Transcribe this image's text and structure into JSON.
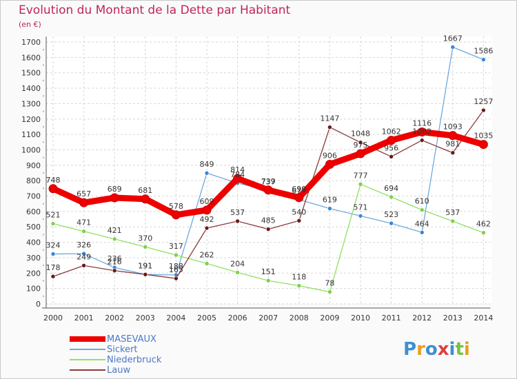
{
  "header": {
    "title": "Evolution du Montant de la Dette par Habitant",
    "subtitle": "(en €)"
  },
  "logo": {
    "text": "Proxiti",
    "letters": [
      {
        "ch": "P",
        "color": "#3e8fd0"
      },
      {
        "ch": "r",
        "color": "#e8a020"
      },
      {
        "ch": "o",
        "color": "#3e8fd0"
      },
      {
        "ch": "x",
        "color": "#e04040"
      },
      {
        "ch": "i",
        "color": "#3e8fd0"
      },
      {
        "ch": "t",
        "color": "#7cc040"
      },
      {
        "ch": "i",
        "color": "#e8a020"
      }
    ]
  },
  "chart_data": {
    "type": "line",
    "title": "Evolution du Montant de la Dette par Habitant",
    "subtitle": "(en €)",
    "xlabel": "",
    "ylabel": "",
    "x": [
      2000,
      2001,
      2002,
      2003,
      2004,
      2005,
      2006,
      2007,
      2008,
      2009,
      2010,
      2011,
      2012,
      2013,
      2014
    ],
    "ylim": [
      0,
      1700
    ],
    "ytick_step": 100,
    "grid": true,
    "legend_position": "bottom-left",
    "series": [
      {
        "name": "MASEVAUX",
        "color": "#ee0000",
        "point_color": "#ee0000",
        "emphasis": true,
        "values": [
          748,
          657,
          689,
          681,
          578,
          609,
          814,
          739,
          690,
          906,
          975,
          1062,
          1116,
          1093,
          1035
        ]
      },
      {
        "name": "Sickert",
        "color": "#6fa8dc",
        "point_color": "#3a86d6",
        "emphasis": false,
        "values": [
          324,
          326,
          236,
          191,
          188,
          849,
          784,
          737,
          677,
          619,
          571,
          523,
          464,
          1667,
          1586
        ]
      },
      {
        "name": "Niederbruck",
        "color": "#90e060",
        "point_color": "#7ed04f",
        "emphasis": false,
        "values": [
          521,
          471,
          421,
          370,
          317,
          262,
          204,
          151,
          118,
          78,
          777,
          694,
          610,
          537,
          462
        ]
      },
      {
        "name": "Lauw",
        "color": "#8a3a3a",
        "point_color": "#6a1a1a",
        "emphasis": false,
        "values": [
          178,
          249,
          216,
          191,
          165,
          492,
          537,
          485,
          540,
          1147,
          1048,
          956,
          1062,
          981,
          1257
        ]
      }
    ]
  }
}
